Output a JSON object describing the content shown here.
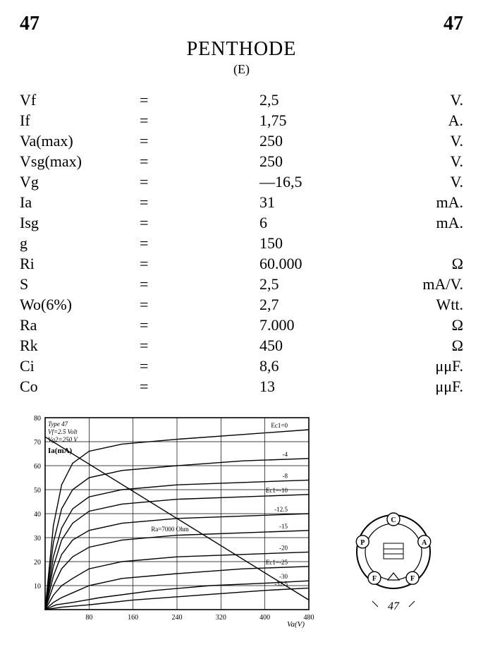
{
  "header": {
    "left_number": "47",
    "right_number": "47",
    "title": "PENTHODE",
    "subtitle": "(E)"
  },
  "specs": [
    {
      "param": "Vf",
      "value": "2,5",
      "unit": "V."
    },
    {
      "param": "If",
      "value": "1,75",
      "unit": "A."
    },
    {
      "param": "Va(max)",
      "value": "250",
      "unit": "V."
    },
    {
      "param": "Vsg(max)",
      "value": "250",
      "unit": "V."
    },
    {
      "param": "Vg",
      "value": "—16,5",
      "unit": "V."
    },
    {
      "param": "Ia",
      "value": "31",
      "unit": "mA."
    },
    {
      "param": "Isg",
      "value": "6",
      "unit": "mA."
    },
    {
      "param": "g",
      "value": "150",
      "unit": ""
    },
    {
      "param": "Ri",
      "value": "60.000",
      "unit": "Ω"
    },
    {
      "param": "S",
      "value": "2,5",
      "unit": "mA/V."
    },
    {
      "param": "Wo(6%)",
      "value": "2,7",
      "unit": "Wtt."
    },
    {
      "param": "Ra",
      "value": "7.000",
      "unit": "Ω"
    },
    {
      "param": "Rk",
      "value": "450",
      "unit": "Ω"
    },
    {
      "param": "Ci",
      "value": "8,6",
      "unit": "μμF."
    },
    {
      "param": "Co",
      "value": "13",
      "unit": "μμF."
    }
  ],
  "chart": {
    "type": "line",
    "title_lines": [
      "Type 47",
      "Vf=2.5 Volt",
      "Vg2=250 V"
    ],
    "y_label": "Ia(mA)",
    "x_label": "Va(V)",
    "xlim": [
      0,
      480
    ],
    "ylim": [
      0,
      80
    ],
    "x_ticks": [
      0,
      80,
      160,
      240,
      320,
      400,
      480
    ],
    "x_tick_labels": [
      "",
      "80",
      "160",
      "240",
      "320",
      "400",
      "480"
    ],
    "y_ticks": [
      0,
      10,
      20,
      30,
      40,
      50,
      60,
      70,
      80
    ],
    "y_tick_labels": [
      "",
      "10",
      "20",
      "30",
      "40",
      "50",
      "60",
      "70",
      "80"
    ],
    "grid_color": "#000000",
    "background_color": "#ffffff",
    "line_color": "#000000",
    "line_width": 1.4,
    "font_size_axis": 10,
    "font_size_annot": 9,
    "load_line": {
      "label": "Ra=7000 Ohm",
      "points": [
        [
          0,
          72
        ],
        [
          480,
          4
        ]
      ]
    },
    "series": [
      {
        "label": "Ec1=0",
        "points": [
          [
            0,
            0
          ],
          [
            15,
            35
          ],
          [
            30,
            52
          ],
          [
            50,
            61
          ],
          [
            80,
            66
          ],
          [
            140,
            69
          ],
          [
            240,
            71
          ],
          [
            360,
            73
          ],
          [
            480,
            75
          ]
        ]
      },
      {
        "label": "-4",
        "points": [
          [
            0,
            0
          ],
          [
            15,
            28
          ],
          [
            30,
            42
          ],
          [
            50,
            50
          ],
          [
            80,
            55
          ],
          [
            140,
            58
          ],
          [
            240,
            60
          ],
          [
            360,
            62
          ],
          [
            480,
            63
          ]
        ]
      },
      {
        "label": "-8",
        "points": [
          [
            0,
            0
          ],
          [
            15,
            22
          ],
          [
            30,
            34
          ],
          [
            50,
            42
          ],
          [
            80,
            47
          ],
          [
            140,
            50
          ],
          [
            240,
            52
          ],
          [
            360,
            53
          ],
          [
            480,
            54
          ]
        ]
      },
      {
        "label": "Ec1=-10",
        "points": [
          [
            0,
            0
          ],
          [
            15,
            18
          ],
          [
            30,
            29
          ],
          [
            50,
            36
          ],
          [
            80,
            41
          ],
          [
            140,
            44
          ],
          [
            240,
            46
          ],
          [
            360,
            47
          ],
          [
            480,
            48
          ]
        ]
      },
      {
        "label": "-12.5",
        "points": [
          [
            0,
            0
          ],
          [
            15,
            14
          ],
          [
            30,
            23
          ],
          [
            50,
            29
          ],
          [
            80,
            33
          ],
          [
            140,
            36
          ],
          [
            240,
            38
          ],
          [
            360,
            39
          ],
          [
            480,
            40
          ]
        ]
      },
      {
        "label": "-15",
        "points": [
          [
            0,
            0
          ],
          [
            15,
            10
          ],
          [
            30,
            17
          ],
          [
            50,
            22
          ],
          [
            80,
            26
          ],
          [
            140,
            29
          ],
          [
            240,
            31
          ],
          [
            360,
            32
          ],
          [
            480,
            33
          ]
        ]
      },
      {
        "label": "-20",
        "points": [
          [
            0,
            0
          ],
          [
            15,
            6
          ],
          [
            30,
            10
          ],
          [
            50,
            13
          ],
          [
            80,
            17
          ],
          [
            140,
            20
          ],
          [
            240,
            22
          ],
          [
            360,
            23
          ],
          [
            480,
            24
          ]
        ]
      },
      {
        "label": "Ec1=-25",
        "points": [
          [
            0,
            0
          ],
          [
            15,
            3
          ],
          [
            30,
            5
          ],
          [
            50,
            7
          ],
          [
            80,
            10
          ],
          [
            140,
            13
          ],
          [
            240,
            15
          ],
          [
            360,
            17
          ],
          [
            480,
            18
          ]
        ]
      },
      {
        "label": "-30",
        "points": [
          [
            0,
            0
          ],
          [
            20,
            2
          ],
          [
            50,
            3
          ],
          [
            100,
            5
          ],
          [
            200,
            8
          ],
          [
            300,
            10
          ],
          [
            400,
            11
          ],
          [
            480,
            12
          ]
        ]
      },
      {
        "label": "-32.5",
        "points": [
          [
            0,
            0
          ],
          [
            30,
            1
          ],
          [
            80,
            2
          ],
          [
            160,
            4
          ],
          [
            280,
            6
          ],
          [
            400,
            8
          ],
          [
            480,
            9
          ]
        ]
      }
    ]
  },
  "pinout": {
    "caption": "47",
    "pins": [
      {
        "label": "C",
        "angle_deg": 90
      },
      {
        "label": "A",
        "angle_deg": 18
      },
      {
        "label": "F",
        "angle_deg": -54
      },
      {
        "label": "F",
        "angle_deg": -126
      },
      {
        "label": "P",
        "angle_deg": 162
      }
    ],
    "ring_color": "#000000",
    "fill_color": "#ffffff",
    "font_size": 10
  }
}
